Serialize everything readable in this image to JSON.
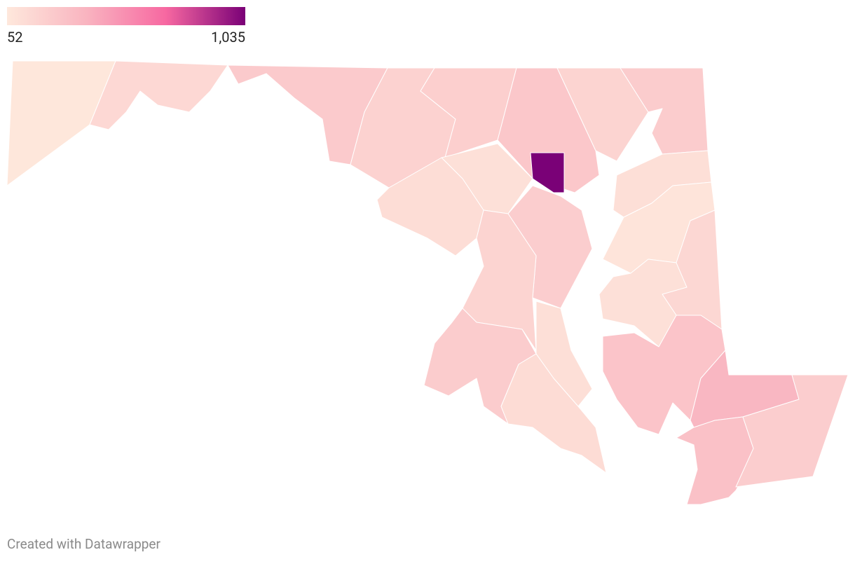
{
  "legend": {
    "min": 52,
    "max": {
      "value": 1035,
      "label": "1,035"
    },
    "colors": [
      "#fee8dc",
      "#f9b4c0",
      "#f768a1",
      "#7a0177"
    ]
  },
  "regions": {
    "values": [
      60,
      150,
      240,
      190,
      210,
      260,
      1035,
      180,
      230,
      100,
      120,
      220,
      180,
      230,
      110,
      130,
      110,
      80,
      160,
      100,
      280,
      360,
      300,
      220
    ]
  },
  "footer": "Created with Datawrapper"
}
